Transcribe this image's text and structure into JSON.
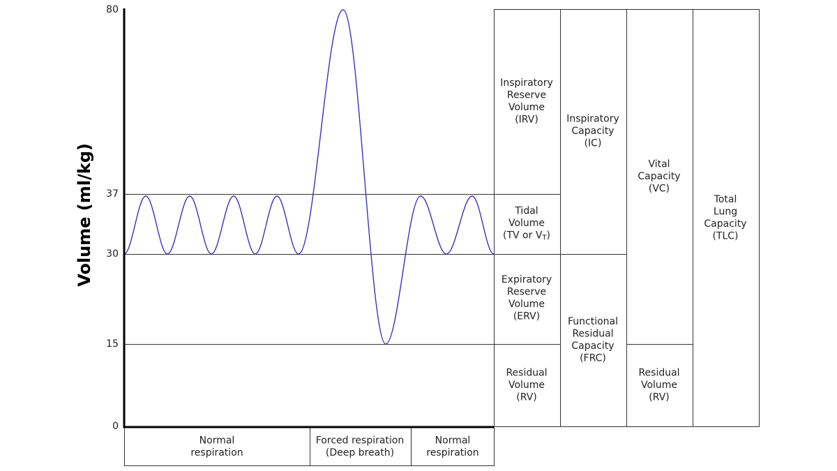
{
  "y_axis": {
    "label": "Volume (ml/kg)",
    "ticks": [
      "80",
      "37",
      "30",
      "15",
      "0"
    ]
  },
  "volumes": [
    {
      "lines": [
        "Inspiratory",
        "Reserve",
        "Volume",
        "(IRV)"
      ]
    },
    {
      "lines": [
        "Tidal",
        "Volume",
        [
          "(TV or V",
          "T",
          ")"
        ]
      ]
    },
    {
      "lines": [
        "Expiratory",
        "Reserve",
        "Volume",
        "(ERV)"
      ]
    },
    {
      "lines": [
        "Residual",
        "Volume",
        "(RV)"
      ]
    },
    {
      "lines": [
        "Inspiratory",
        "Capacity",
        "(IC)"
      ]
    },
    {
      "lines": [
        "Functional",
        "Residual",
        "Capacity",
        "(FRC)"
      ]
    },
    {
      "lines": [
        "Vital",
        "Capacity",
        "(VC)"
      ]
    },
    {
      "lines": [
        "Residual",
        "Volume",
        "(RV)"
      ]
    },
    {
      "lines": [
        "Total",
        "Lung",
        "Capacity",
        "(TLC)"
      ]
    }
  ],
  "phases": [
    {
      "lines": [
        "Normal",
        "respiration"
      ]
    },
    {
      "lines": [
        "Forced respiration",
        "(Deep breath)"
      ]
    },
    {
      "lines": [
        "Normal",
        "respiration"
      ]
    }
  ]
}
